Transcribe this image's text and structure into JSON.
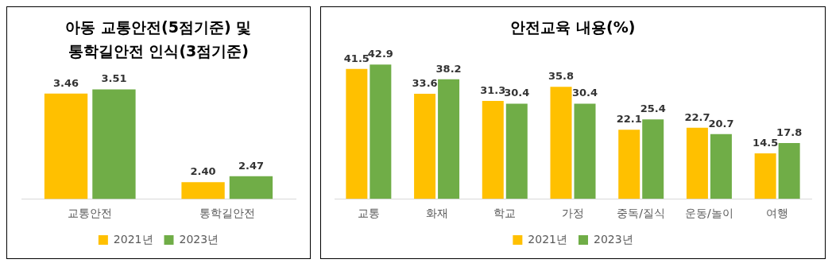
{
  "chart_data": [
    {
      "type": "bar",
      "title": "아동 교통안전(5점기준) 및 통학길안전 인식(3점기준)",
      "categories": [
        "교통안전",
        "통학길안전"
      ],
      "series": [
        {
          "name": "2021년",
          "color": "#ffc000",
          "values": [
            3.46,
            2.4
          ],
          "value_labels": [
            "3.46",
            "2.40"
          ]
        },
        {
          "name": "2023년",
          "color": "#70ad47",
          "values": [
            3.51,
            2.47
          ]
        }
      ],
      "data_labels": true,
      "legend": "bottom",
      "tick_labels": "x"
    },
    {
      "type": "bar",
      "title": "안전교육 내용(%)",
      "categories": [
        "교통",
        "화재",
        "학교",
        "가정",
        "중독/질식",
        "운동/놀이",
        "여행"
      ],
      "series": [
        {
          "name": "2021년",
          "color": "#ffc000",
          "values": [
            41.5,
            33.6,
            31.3,
            35.8,
            22.1,
            22.7,
            14.5
          ]
        },
        {
          "name": "2023년",
          "color": "#70ad47",
          "values": [
            42.9,
            38.2,
            30.4,
            30.4,
            25.4,
            20.7,
            17.8
          ]
        }
      ],
      "data_labels": true,
      "legend": "bottom",
      "tick_labels": "x"
    }
  ]
}
